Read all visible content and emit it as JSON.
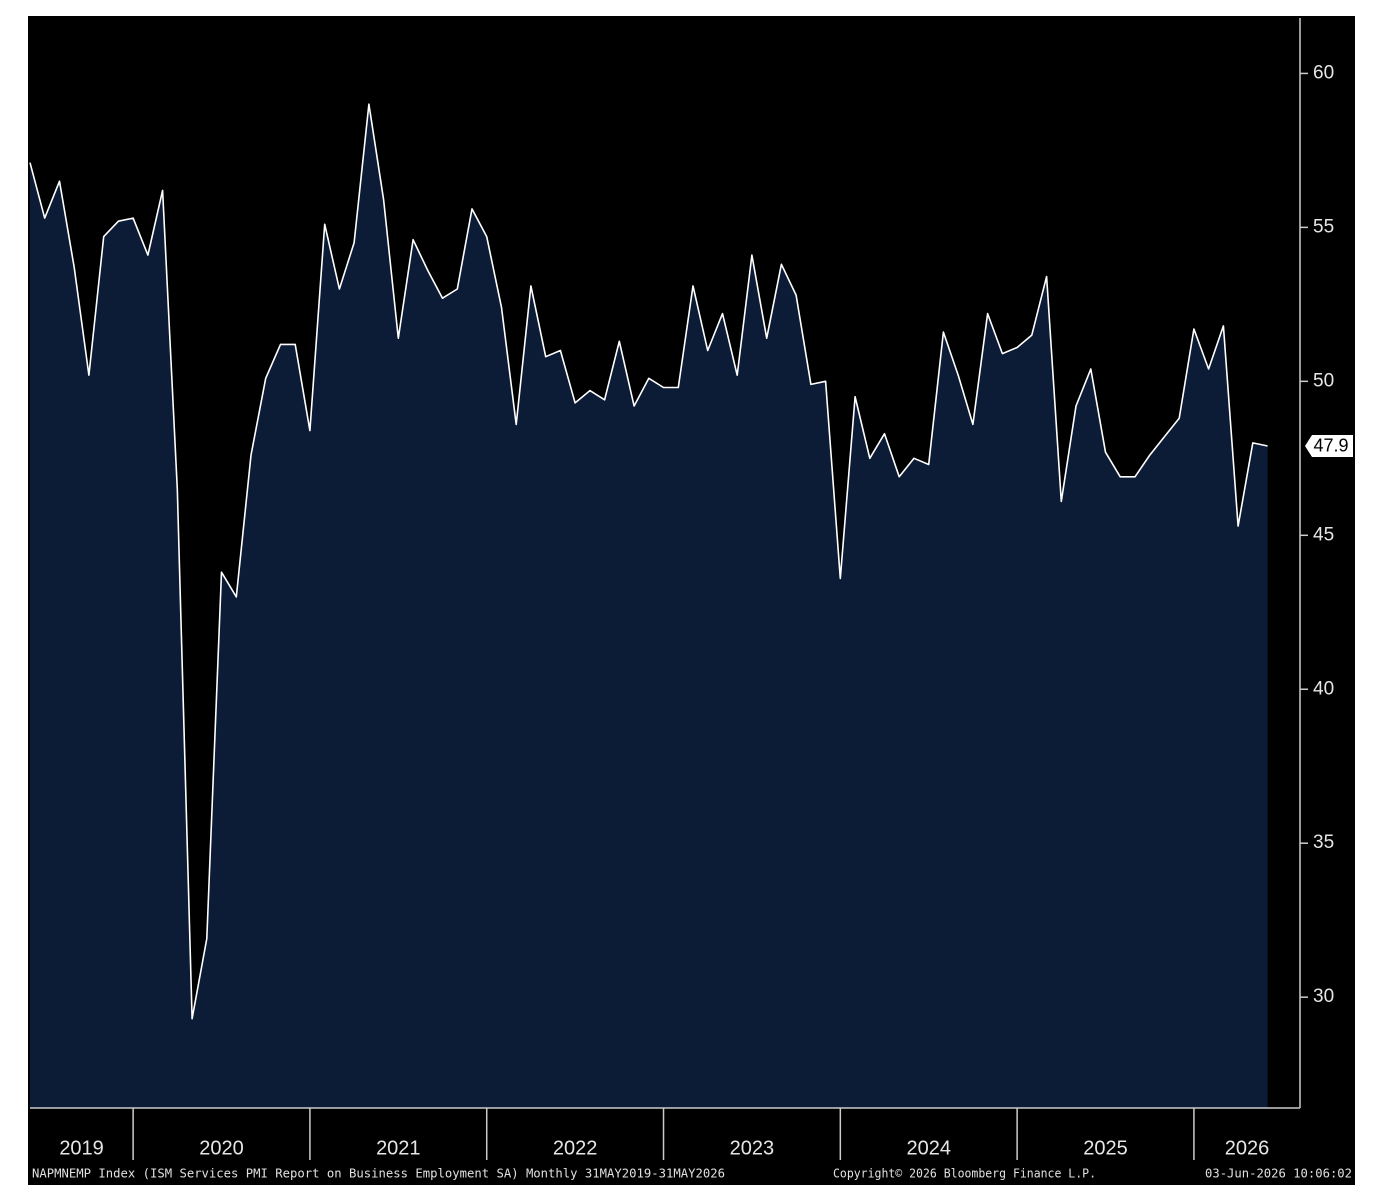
{
  "chart_data": {
    "type": "area",
    "x": [
      2019.4167,
      2019.5,
      2019.5833,
      2019.6667,
      2019.75,
      2019.8333,
      2019.9167,
      2020,
      2020.0833,
      2020.1667,
      2020.25,
      2020.3333,
      2020.4167,
      2020.5,
      2020.5833,
      2020.6667,
      2020.75,
      2020.8333,
      2020.9167,
      2021,
      2021.0833,
      2021.1667,
      2021.25,
      2021.3333,
      2021.4167,
      2021.5,
      2021.5833,
      2021.6667,
      2021.75,
      2021.8333,
      2021.9167,
      2022,
      2022.0833,
      2022.1667,
      2022.25,
      2022.3333,
      2022.4167,
      2022.5,
      2022.5833,
      2022.6667,
      2022.75,
      2022.8333,
      2022.9167,
      2023,
      2023.0833,
      2023.1667,
      2023.25,
      2023.3333,
      2023.4167,
      2023.5,
      2023.5833,
      2023.6667,
      2023.75,
      2023.8333,
      2023.9167,
      2024,
      2024.0833,
      2024.1667,
      2024.25,
      2024.3333,
      2024.4167,
      2024.5,
      2024.5833,
      2024.6667,
      2024.75,
      2024.8333,
      2024.9167,
      2025,
      2025.0833,
      2025.1667,
      2025.25,
      2025.3333,
      2025.4167,
      2025.5,
      2025.5833,
      2025.6667,
      2025.75,
      2025.8333,
      2025.9167,
      2026,
      2026.0833,
      2026.1667,
      2026.25,
      2026.3333,
      2026.4167
    ],
    "values": [
      57.1,
      55.3,
      56.5,
      53.7,
      50.2,
      54.7,
      55.2,
      55.3,
      54.1,
      56.2,
      46.5,
      29.3,
      31.9,
      43.8,
      43.0,
      47.6,
      50.1,
      51.2,
      51.2,
      48.4,
      55.1,
      53.0,
      54.5,
      59.0,
      55.9,
      51.4,
      54.6,
      53.6,
      52.7,
      53.0,
      55.6,
      54.7,
      52.4,
      48.6,
      53.1,
      50.8,
      51.0,
      49.3,
      49.7,
      49.4,
      51.3,
      49.2,
      50.1,
      49.8,
      49.8,
      53.1,
      51.0,
      52.2,
      50.2,
      54.1,
      51.4,
      53.8,
      52.8,
      49.9,
      50.0,
      43.6,
      49.5,
      47.5,
      48.3,
      46.9,
      47.5,
      47.3,
      51.6,
      50.2,
      48.6,
      52.2,
      50.9,
      51.1,
      51.5,
      53.4,
      46.1,
      49.2,
      50.4,
      47.7,
      46.9,
      46.9,
      47.6,
      48.2,
      48.8,
      51.7,
      50.4,
      51.8,
      45.3,
      48.0,
      47.9
    ],
    "color": "#ffffff",
    "fill": "#0c1b36",
    "xlim": [
      2019.4167,
      2026.6
    ],
    "xticks": [
      2019,
      2020,
      2021,
      2022,
      2023,
      2024,
      2025,
      2026
    ],
    "ylim": [
      26.4,
      61.8
    ],
    "yticks": [
      30,
      35,
      40,
      45,
      50,
      55,
      60
    ],
    "source": "NAPMNEMP Index (ISM Services PMI Report on Business Employment SA) Monthly 31MAY2019-31MAY2026",
    "copyright": "Copyright© 2026 Bloomberg Finance L.P.",
    "timestamp": "03-Jun-2026 10:06:02"
  }
}
